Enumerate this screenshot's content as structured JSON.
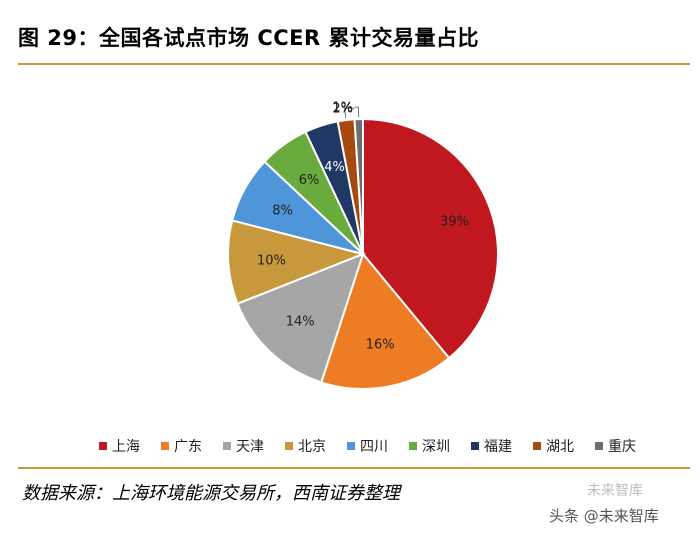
{
  "figure": {
    "title": "图 29：全国各试点市场 CCER 累计交易量占比",
    "source": "数据来源：上海环境能源交易所，西南证券整理",
    "watermark": "头条 @未来智库",
    "watermark_logo": "未来智库"
  },
  "chart_data": {
    "type": "pie",
    "title": "",
    "legend_position": "bottom",
    "start": "12 o'clock, clockwise",
    "slices": [
      {
        "label": "上海",
        "value": 39,
        "display": "39%",
        "color": "#c0181e"
      },
      {
        "label": "广东",
        "value": 16,
        "display": "16%",
        "color": "#ee7c25"
      },
      {
        "label": "天津",
        "value": 14,
        "display": "14%",
        "color": "#a6a6a6"
      },
      {
        "label": "北京",
        "value": 10,
        "display": "10%",
        "color": "#c8993c"
      },
      {
        "label": "四川",
        "value": 8,
        "display": "8%",
        "color": "#4e95d9"
      },
      {
        "label": "深圳",
        "value": 6,
        "display": "6%",
        "color": "#6aab3d"
      },
      {
        "label": "福建",
        "value": 4,
        "display": "4%",
        "color": "#203864"
      },
      {
        "label": "湖北",
        "value": 2,
        "display": "2%",
        "color": "#a84a10"
      },
      {
        "label": "重庆",
        "value": 1,
        "display": "1%",
        "color": "#6d6d6d"
      }
    ]
  }
}
